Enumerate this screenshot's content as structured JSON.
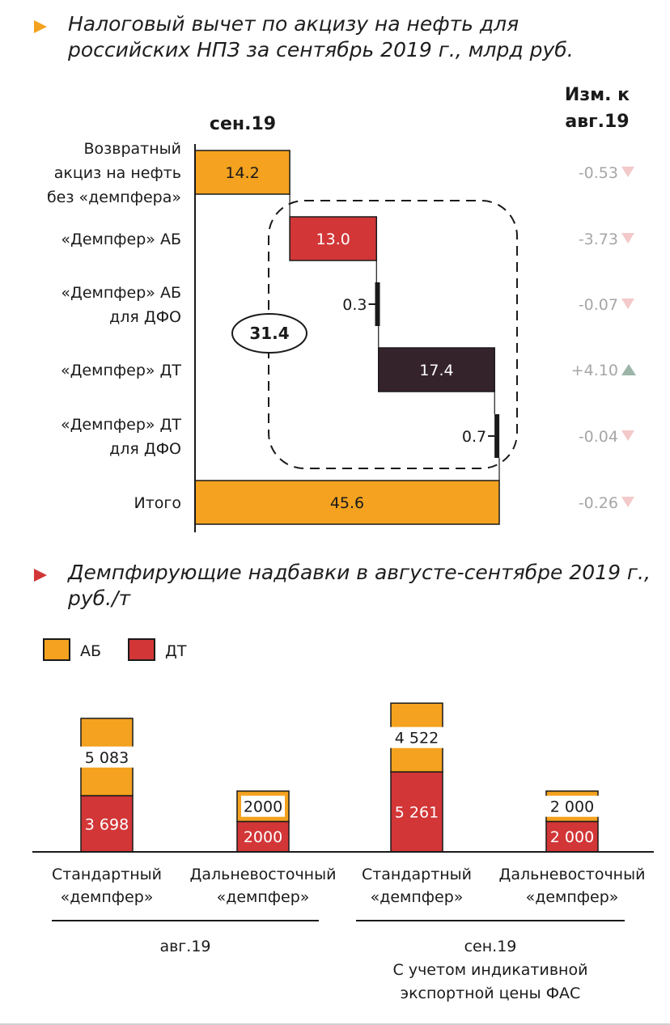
{
  "chart_data": [
    {
      "type": "bar",
      "subtype": "waterfall",
      "title": "Налоговый вычет по акцизу на нефть для российских НПЗ за сентябрь 2019 г., млрд руб.",
      "column_header": "сен.19",
      "change_header": [
        "Изм. к",
        "авг.19"
      ],
      "categories": [
        [
          "Возвратный",
          "акциз на нефть",
          "без «демпфера»"
        ],
        [
          "«Демпфер» АБ"
        ],
        [
          "«Демпфер» АБ",
          "для ДФО"
        ],
        [
          "«Демпфер» ДТ"
        ],
        [
          "«Демпфер» ДТ",
          "для ДФО"
        ],
        [
          "Итого"
        ]
      ],
      "values": [
        14.2,
        13.0,
        0.3,
        17.4,
        0.7,
        45.6
      ],
      "value_labels": [
        "14.2",
        "13.0",
        "0.3",
        "17.4",
        "0.7",
        "45.6"
      ],
      "colors": [
        "#f4a21f",
        "#d23637",
        "#1a1a1a",
        "#35232c",
        "#1a1a1a",
        "#f4a21f"
      ],
      "changes": [
        {
          "text": "-0.53",
          "direction": "down"
        },
        {
          "text": "-3.73",
          "direction": "down"
        },
        {
          "text": "-0.07",
          "direction": "down"
        },
        {
          "text": "+4.10",
          "direction": "up"
        },
        {
          "text": "-0.04",
          "direction": "down"
        },
        {
          "text": "-0.26",
          "direction": "down"
        }
      ],
      "bracket_total": "31.4",
      "xlim": [
        0,
        45.6
      ]
    },
    {
      "type": "bar",
      "subtype": "stacked",
      "title": "Демпфирующие надбавки в августе-сентябре 2019 г., руб./т",
      "legend": [
        "АБ",
        "ДТ"
      ],
      "categories": [
        [
          "Стандартный",
          "«демпфер»"
        ],
        [
          "Дальневосточный",
          "«демпфер»"
        ],
        [
          "Стандартный",
          "«демпфер»"
        ],
        [
          "Дальневосточный",
          "«демпфер»"
        ]
      ],
      "series": [
        {
          "name": "АБ",
          "values": [
            5083,
            2000,
            4522,
            2000
          ],
          "labels": [
            "5 083",
            "2000",
            "4 522",
            "2 000"
          ],
          "color": "#f4a21f"
        },
        {
          "name": "ДТ",
          "values": [
            3698,
            2000,
            5261,
            2000
          ],
          "labels": [
            "3 698",
            "2000",
            "5 261",
            "2 000"
          ],
          "color": "#d23637"
        }
      ],
      "groups": [
        {
          "lines": [
            "авг.19"
          ]
        },
        {
          "lines": [
            "сен.19",
            "С учетом индикативной",
            "экспортной цены ФАС"
          ]
        }
      ]
    }
  ],
  "colors": {
    "ab": "#f4a21f",
    "dt": "#d23637",
    "dark": "#35232c",
    "down_arrow": "#f3c9c9",
    "up_arrow": "#9cb5a8",
    "change_text": "#a6a6a6"
  }
}
